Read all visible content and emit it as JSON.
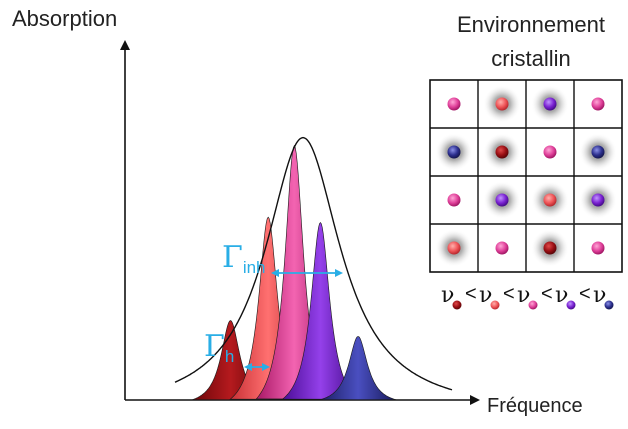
{
  "axes": {
    "y_label": "Absorption",
    "x_label": "Fréquence"
  },
  "crystal": {
    "title_line1": "Environnement",
    "title_line2": "cristallin",
    "grid": [
      [
        "magenta",
        "coral",
        "violet",
        "magenta"
      ],
      [
        "navy",
        "darkred",
        "magenta",
        "navy"
      ],
      [
        "magenta",
        "violet",
        "coral",
        "violet"
      ],
      [
        "coral",
        "magenta",
        "darkred",
        "magenta"
      ]
    ],
    "halos": [
      [
        false,
        true,
        true,
        false
      ],
      [
        true,
        true,
        false,
        true
      ],
      [
        false,
        true,
        true,
        true
      ],
      [
        true,
        false,
        true,
        false
      ]
    ]
  },
  "widths": {
    "inhomogeneous_symbol": "Γ",
    "inhomogeneous_sub": "inh",
    "homogeneous_symbol": "Γ",
    "homogeneous_sub": "h"
  },
  "frequency_order": {
    "symbol": "ν",
    "comparator": "<",
    "sequence": [
      "darkred",
      "coral",
      "magenta",
      "violet",
      "navy"
    ]
  },
  "colors": {
    "darkred": "#9a0f14",
    "coral": "#ef5558",
    "magenta": "#e0409a",
    "violet": "#7a22d2",
    "navy": "#2c2f8e",
    "accent": "#29aee6",
    "axis": "#111111"
  },
  "peaks": [
    {
      "color": "darkred",
      "center": 0.25,
      "height": 0.3
    },
    {
      "color": "coral",
      "center": 0.38,
      "height": 0.69
    },
    {
      "color": "magenta",
      "center": 0.47,
      "height": 0.96
    },
    {
      "color": "violet",
      "center": 0.56,
      "height": 0.67
    },
    {
      "color": "navy",
      "center": 0.69,
      "height": 0.24
    }
  ]
}
